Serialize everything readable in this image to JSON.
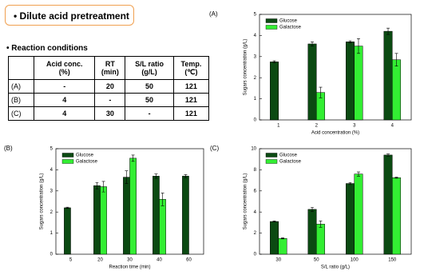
{
  "header": {
    "title": "• Dilute acid pretreatment"
  },
  "section": "• Reaction conditions",
  "table": {
    "header": [
      "Acid conc.\n(%)",
      "RT\n(min)",
      "S/L ratio\n(g/L)",
      "Temp.\n(℃)"
    ],
    "rows": [
      [
        "(A)",
        "-",
        "20",
        "50",
        "121"
      ],
      [
        "(B)",
        "4",
        "-",
        "50",
        "121"
      ],
      [
        "(C)",
        "4",
        "30",
        "-",
        "121"
      ]
    ]
  },
  "chart_data": [
    {
      "type": "bar",
      "label": "(A)",
      "xlabel": "Acid concentration (%)",
      "ylabel": "Sugars concentration (g/L)",
      "categories": [
        "1",
        "2",
        "3",
        "4"
      ],
      "legend": "upper left",
      "series": [
        {
          "name": "Glucose",
          "color": "#0b4a12",
          "values": [
            2.75,
            3.6,
            3.7,
            4.2
          ],
          "errors": [
            0.05,
            0.1,
            0.05,
            0.15
          ]
        },
        {
          "name": "Galactose",
          "color": "#33ee33",
          "values": [
            null,
            1.3,
            3.5,
            2.85
          ],
          "errors": [
            null,
            0.25,
            0.35,
            0.3
          ]
        }
      ],
      "ylim": [
        0,
        5
      ],
      "yticks": [
        0,
        1,
        2,
        3,
        4,
        5
      ]
    },
    {
      "type": "bar",
      "label": "(B)",
      "xlabel": "Reaction time (min)",
      "ylabel": "Sugars concentration (g/L)",
      "categories": [
        "5",
        "20",
        "30",
        "40",
        "60"
      ],
      "legend": "upper left",
      "series": [
        {
          "name": "Glucose",
          "color": "#0b4a12",
          "values": [
            2.2,
            3.25,
            3.65,
            3.7,
            3.7
          ],
          "errors": [
            0.03,
            0.15,
            0.3,
            0.1,
            0.07
          ]
        },
        {
          "name": "Galactose",
          "color": "#33ee33",
          "values": [
            null,
            3.2,
            4.55,
            2.6,
            null
          ],
          "errors": [
            null,
            0.25,
            0.15,
            0.3,
            null
          ]
        }
      ],
      "ylim": [
        0,
        5
      ],
      "yticks": [
        0,
        1,
        2,
        3,
        4,
        5
      ]
    },
    {
      "type": "bar",
      "label": "(C)",
      "xlabel": "S/L ratio (g/L)",
      "ylabel": "Sugars concentration (g/L)",
      "categories": [
        "30",
        "50",
        "100",
        "150"
      ],
      "legend": "upper left",
      "series": [
        {
          "name": "Glucose",
          "color": "#0b4a12",
          "values": [
            3.1,
            4.25,
            6.7,
            9.4
          ],
          "errors": [
            0.05,
            0.2,
            0.1,
            0.1
          ]
        },
        {
          "name": "Galactose",
          "color": "#33ee33",
          "values": [
            1.5,
            2.85,
            7.6,
            7.25
          ],
          "errors": [
            0.05,
            0.3,
            0.2,
            0.05
          ]
        }
      ],
      "ylim": [
        0,
        10
      ],
      "yticks": [
        0,
        2,
        4,
        6,
        8,
        10
      ]
    }
  ]
}
